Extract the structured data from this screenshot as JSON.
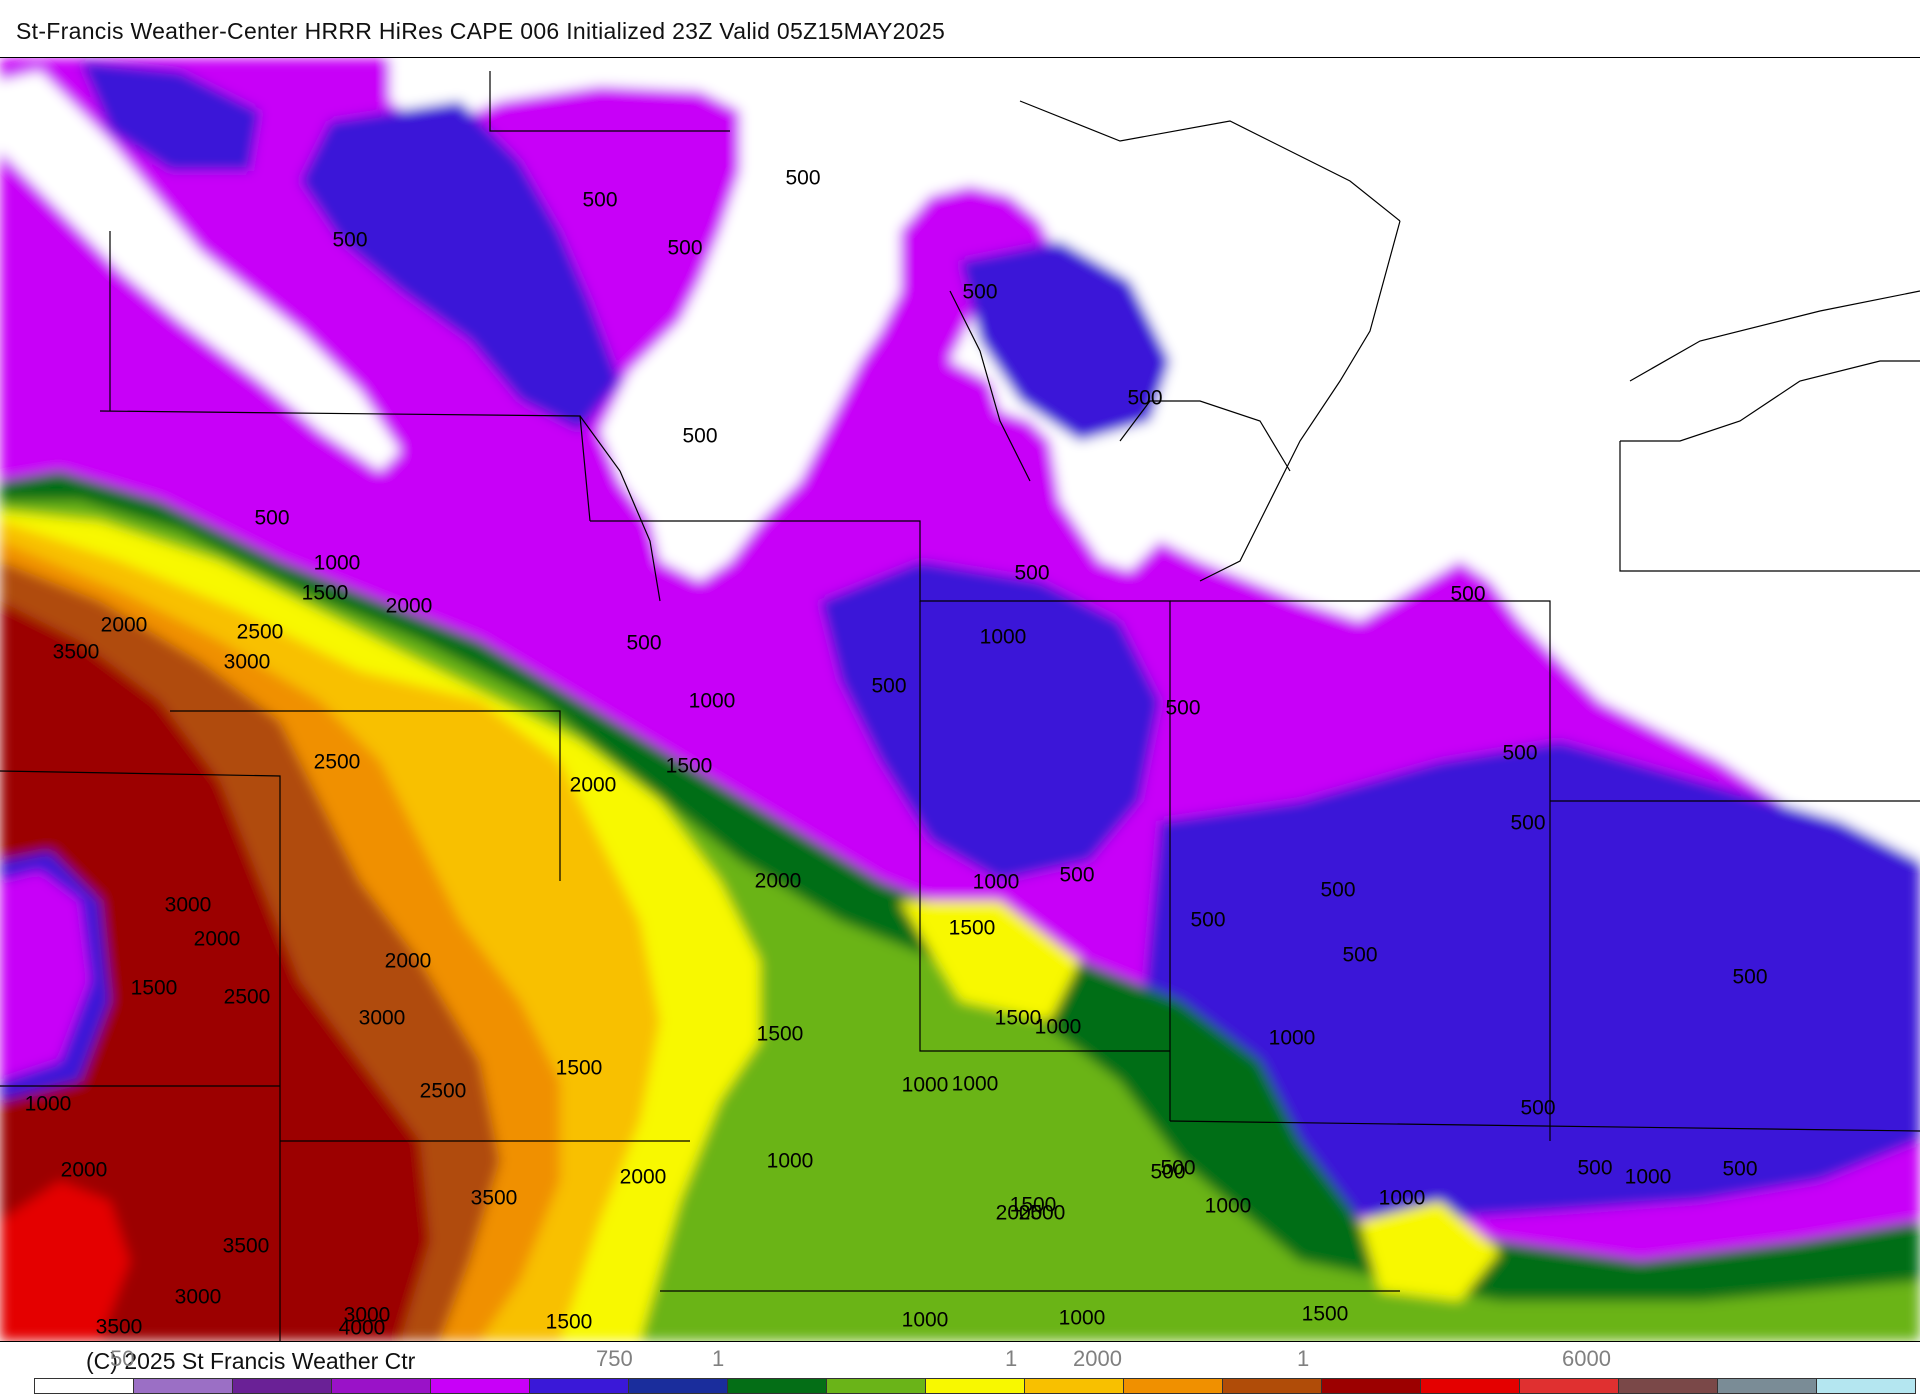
{
  "header": {
    "title": "St-Francis Weather-Center HRRR HiRes CAPE  006 Initialized  23Z Valid 05Z15MAY2025"
  },
  "footer": {
    "copyright": "(C) 2025 St Francis Weather Ctr"
  },
  "colorbar": {
    "colors": [
      "#ffffff",
      "#9b6fc5",
      "#6a2196",
      "#9a12c8",
      "#c800f8",
      "#3a18d8",
      "#1a2d9c",
      "#046e16",
      "#6ab418",
      "#f8f800",
      "#f8c000",
      "#f09000",
      "#b04c08",
      "#9c0000",
      "#e40000",
      "#e03030",
      "#7a4848",
      "#7a8c96",
      "#b4e6f0"
    ],
    "tick_labels": [
      {
        "text": "50"
      },
      {
        "text": "750"
      },
      {
        "text": "1"
      },
      {
        "text": "1"
      },
      {
        "text": "2000"
      },
      {
        "text": "1"
      },
      {
        "text": "6000"
      }
    ]
  },
  "contour_labels": [
    "500",
    "500",
    "500",
    "500",
    "500",
    "500",
    "500",
    "500",
    "500",
    "500",
    "500",
    "500",
    "500",
    "500",
    "500",
    "500",
    "500",
    "500",
    "500",
    "500",
    "500",
    "500",
    "500",
    "500",
    "500",
    "1000",
    "1000",
    "1000",
    "1000",
    "1000",
    "1000",
    "1000",
    "1000",
    "1000",
    "1000",
    "1000",
    "1000",
    "1000",
    "1000",
    "1000",
    "1500",
    "1500",
    "1500",
    "1500",
    "1500",
    "1500",
    "1500",
    "1500",
    "1500",
    "1500",
    "2000",
    "2000",
    "2000",
    "2000",
    "2000",
    "2000",
    "2000",
    "2000",
    "2000",
    "2500",
    "2500",
    "2500",
    "2500",
    "2500",
    "3000",
    "3000",
    "3000",
    "3000",
    "3000",
    "3500",
    "3500",
    "3500",
    "3500",
    "4000"
  ]
}
